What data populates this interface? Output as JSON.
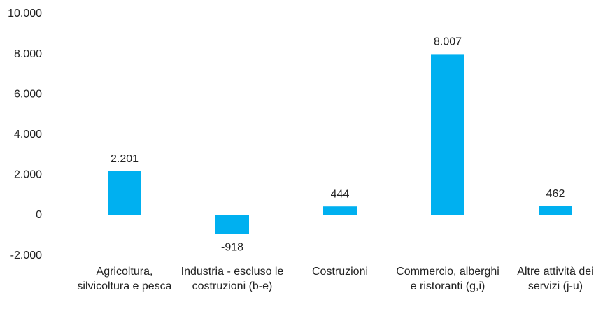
{
  "chart_data": {
    "type": "bar",
    "categories": [
      "Agricoltura, silvicoltura e pesca",
      "Industria - escluso le costruzioni (b-e)",
      "Costruzioni",
      "Commercio, alberghi e ristoranti (g,i)",
      "Altre attività dei servizi (j-u)"
    ],
    "values": [
      2201,
      -918,
      444,
      8007,
      462
    ],
    "value_labels": [
      "2.201",
      "-918",
      "444",
      "8.007",
      "462"
    ],
    "color": "#00b0f0",
    "ylim": [
      -2000,
      10000
    ],
    "yticks": [
      {
        "value": -2000,
        "label": "-2.000"
      },
      0,
      {
        "value": 2000,
        "label": "2.000"
      },
      {
        "value": 4000,
        "label": "4.000"
      },
      {
        "value": 6000,
        "label": "6.000"
      },
      {
        "value": 8000,
        "label": "8.000"
      },
      {
        "value": 10000,
        "label": "10.000"
      }
    ],
    "grid": false
  }
}
